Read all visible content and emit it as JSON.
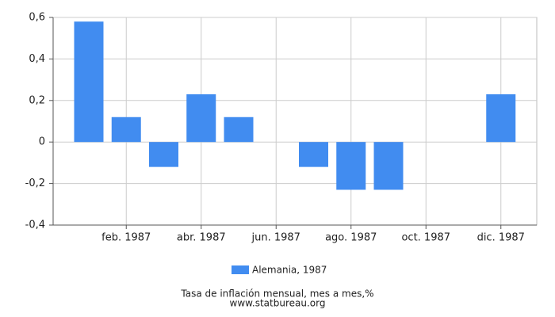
{
  "chart_data": {
    "type": "bar",
    "categories": [
      null,
      "feb. 1987",
      null,
      "abr. 1987",
      null,
      "jun. 1987",
      null,
      "ago. 1987",
      null,
      "oct. 1987",
      null,
      "dic. 1987"
    ],
    "series": [
      {
        "name": "Alemania, 1987",
        "color": "#418cf0",
        "values": [
          0.58,
          0.12,
          -0.12,
          0.23,
          0.12,
          0,
          -0.12,
          -0.23,
          -0.23,
          0,
          0,
          0.23
        ]
      }
    ],
    "ylim": [
      -0.4,
      0.6
    ],
    "yticks": [
      {
        "value": -0.4,
        "label": "-0,4"
      },
      {
        "value": -0.2,
        "label": "-0,2"
      },
      0,
      {
        "value": 0.2,
        "label": "0,2"
      },
      {
        "value": 0.4,
        "label": "0,4"
      },
      {
        "value": 0.6,
        "label": "0,6"
      }
    ],
    "grid": true,
    "footer": [
      "Tasa de inflación mensual, mes a mes,%",
      "www.statbureau.org"
    ]
  }
}
